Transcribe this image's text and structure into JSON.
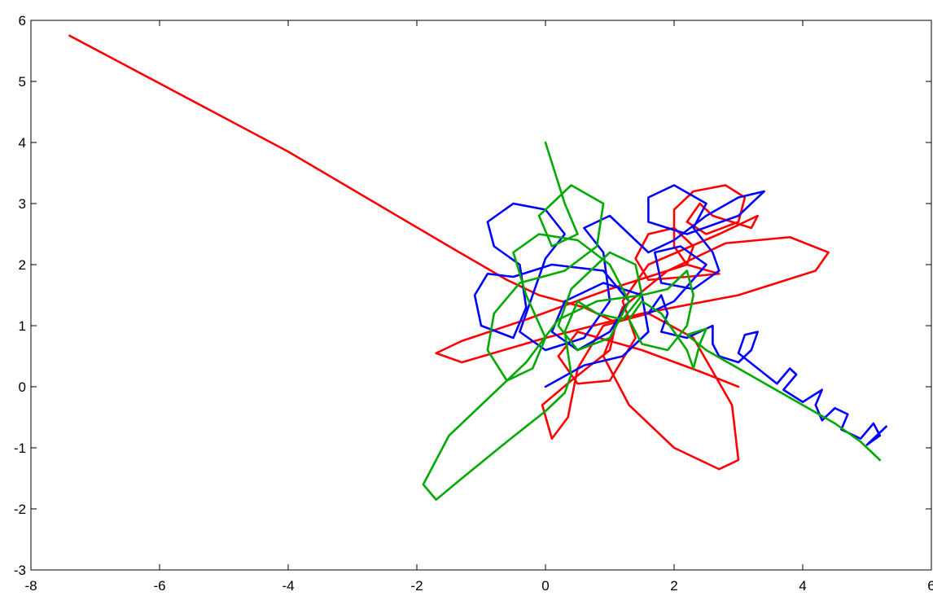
{
  "chart_data": {
    "type": "line",
    "xlim": [
      -8,
      6
    ],
    "xticks": [
      -8,
      -6,
      -4,
      -2,
      0,
      2,
      4,
      6
    ],
    "ylim": [
      -3,
      6
    ],
    "yticks": [
      -3,
      -2,
      -1,
      0,
      1,
      2,
      3,
      4,
      5,
      6
    ],
    "series": [
      {
        "color": "#ff0000",
        "x": [
          -7.4,
          -4,
          -1.5,
          -0.6,
          -0.1,
          0.6,
          1.1,
          1.0,
          0.4,
          -0.05,
          0.1,
          0.35,
          0.5,
          0.9,
          1.6,
          2.3,
          2.9,
          3.0,
          2.7,
          2.0,
          1.3,
          0.9,
          1.2,
          1.9,
          2.8,
          3.8,
          4.4,
          4.2,
          3.0,
          1.5,
          0.0,
          -1.3,
          -1.7,
          -1.3,
          -0.3,
          1.0,
          2.2,
          2.7,
          2.2,
          1.6,
          1.4,
          1.6,
          2.0,
          2.3,
          2.2,
          2.0,
          2.0,
          2.3,
          2.8,
          3.1,
          3.0,
          2.5,
          2.2,
          2.4,
          2.6,
          3.2,
          3.3,
          2.7,
          1.6,
          1.2,
          1.4,
          1.0,
          0.5,
          0.2,
          0.5,
          1.5,
          2.4,
          3.0
        ],
        "values": [
          5.75,
          3.85,
          2.3,
          1.75,
          1.5,
          1.3,
          1.05,
          0.6,
          0.1,
          -0.3,
          -0.85,
          -0.5,
          0.3,
          1.0,
          1.2,
          0.8,
          -0.3,
          -1.2,
          -1.35,
          -1.0,
          -0.3,
          0.5,
          1.3,
          1.9,
          2.35,
          2.45,
          2.2,
          1.9,
          1.5,
          1.2,
          0.8,
          0.4,
          0.55,
          0.75,
          1.1,
          1.6,
          2.0,
          1.85,
          1.8,
          1.75,
          2.1,
          2.5,
          2.6,
          2.3,
          2.0,
          2.3,
          2.9,
          3.2,
          3.3,
          3.1,
          2.7,
          2.5,
          2.7,
          3.0,
          2.8,
          2.6,
          2.8,
          2.5,
          2.0,
          1.4,
          0.8,
          0.1,
          0.05,
          0.5,
          0.9,
          0.6,
          0.25,
          0.0
        ]
      },
      {
        "color": "#0000ff",
        "x": [
          0,
          0.6,
          1.2,
          1.6,
          1.5,
          0.9,
          0.3,
          0.1,
          0.5,
          1.0,
          1.3,
          0.9,
          0.1,
          -0.5,
          -0.9,
          -1.1,
          -1.0,
          -0.5,
          -0.3,
          -0.4,
          -0.8,
          -0.9,
          -0.5,
          0.0,
          0.3,
          0.0,
          -0.2,
          -0.4,
          0,
          0.6,
          1.0,
          0.9,
          0.6,
          1.0,
          1.3,
          1.6,
          2.0,
          2.5,
          3.0,
          3.4,
          3.0,
          2.2,
          1.6,
          1.6,
          2.0,
          2.5,
          2.3,
          2.6,
          2.7,
          2.3,
          1.8,
          1.7,
          2.1,
          2.5,
          2.0,
          1.6,
          1.8,
          1.9,
          1.8,
          2.2,
          2.6,
          2.6,
          2.7,
          3.0,
          3.2,
          3.3,
          3.1,
          3.0,
          3.3,
          3.6,
          3.8,
          3.9,
          3.7,
          4.0,
          4.3,
          4.2,
          4.3,
          4.5,
          4.7,
          4.6,
          4.9,
          5.1,
          5.2,
          5.0,
          5.3
        ],
        "values": [
          0,
          0.35,
          0.5,
          0.9,
          1.5,
          1.7,
          1.4,
          0.9,
          0.6,
          0.9,
          1.4,
          1.9,
          2.0,
          1.8,
          1.85,
          1.5,
          1.0,
          0.8,
          1.3,
          2.0,
          2.3,
          2.7,
          3.0,
          2.9,
          2.5,
          2.1,
          1.5,
          0.9,
          0.6,
          0.8,
          1.4,
          2.2,
          2.6,
          2.8,
          2.5,
          2.2,
          2.4,
          2.8,
          3.1,
          3.2,
          2.8,
          2.5,
          2.7,
          3.1,
          3.3,
          3.0,
          2.6,
          2.2,
          1.9,
          1.6,
          1.7,
          2.2,
          2.3,
          2.0,
          1.4,
          1.2,
          1.5,
          1.2,
          0.9,
          0.8,
          1.0,
          0.7,
          0.5,
          0.4,
          0.6,
          0.9,
          0.85,
          0.55,
          0.3,
          0.05,
          0.3,
          0.2,
          -0.05,
          -0.25,
          -0.05,
          -0.3,
          -0.55,
          -0.35,
          -0.45,
          -0.7,
          -0.85,
          -0.6,
          -0.8,
          -0.95,
          -0.65
        ]
      },
      {
        "color": "#00aa00",
        "x": [
          0,
          0.3,
          0.5,
          0.1,
          -0.1,
          0.4,
          0.9,
          0.8,
          0.3,
          -0.4,
          -0.8,
          -0.9,
          -0.6,
          -0.2,
          0,
          -0.3,
          -0.5,
          -0.1,
          0.5,
          1.0,
          1.3,
          1.0,
          0.5,
          0.2,
          0.4,
          1.0,
          1.4,
          1.5,
          1.2,
          0.8,
          0.5,
          0.3,
          0.4,
          0.3,
          0.0,
          -0.6,
          -1.3,
          -1.7,
          -1.9,
          -1.5,
          -0.8,
          -0.3,
          0.2,
          0.8,
          1.5,
          1.9,
          2.2,
          2.3,
          2.2,
          1.9,
          1.5,
          1.3,
          1.5,
          1.8,
          2.2,
          2.3,
          2.4,
          2.5,
          2.2,
          2.5,
          3.0,
          3.5,
          4.0,
          4.5,
          4.9,
          5.2
        ],
        "values": [
          4.0,
          3.0,
          2.5,
          2.3,
          2.8,
          3.3,
          3.0,
          2.3,
          1.9,
          1.7,
          1.2,
          0.6,
          0.1,
          0.3,
          0.8,
          1.5,
          2.2,
          2.5,
          2.4,
          2.0,
          1.4,
          0.8,
          0.6,
          1.0,
          1.6,
          2.2,
          2.0,
          1.5,
          1.1,
          1.2,
          1.4,
          0.9,
          0.2,
          -0.1,
          -0.4,
          -0.9,
          -1.5,
          -1.85,
          -1.6,
          -0.8,
          -0.1,
          0.4,
          1.1,
          1.4,
          1.5,
          1.6,
          1.9,
          1.5,
          1.0,
          0.6,
          0.7,
          1.1,
          1.4,
          1.2,
          0.6,
          0.3,
          0.7,
          0.95,
          0.85,
          0.6,
          0.3,
          0.0,
          -0.3,
          -0.6,
          -0.9,
          -1.2
        ]
      }
    ]
  }
}
